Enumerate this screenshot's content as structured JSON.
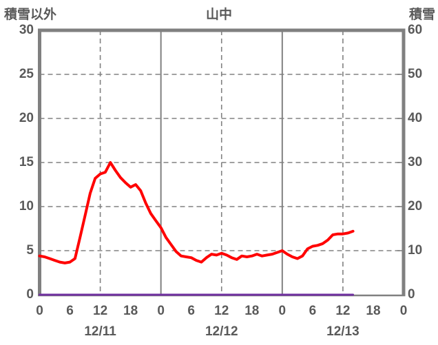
{
  "style": {
    "text_color": "#595959",
    "grid_color": "#808080",
    "background": "#ffffff"
  },
  "chart_data": {
    "type": "line",
    "title": "山中",
    "left_axis": {
      "label": "積雪以外",
      "min": 0,
      "max": 30,
      "ticks": [
        0,
        5,
        10,
        15,
        20,
        25,
        30
      ]
    },
    "right_axis": {
      "label": "積雪",
      "min": 0,
      "max": 60,
      "ticks": [
        0,
        10,
        20,
        30,
        40,
        50,
        60
      ]
    },
    "x_hours_span": 72,
    "x_ticks": [
      {
        "hour": 0,
        "label": "0"
      },
      {
        "hour": 6,
        "label": "6"
      },
      {
        "hour": 12,
        "label": "12"
      },
      {
        "hour": 18,
        "label": "18"
      },
      {
        "hour": 24,
        "label": "0"
      },
      {
        "hour": 30,
        "label": "6"
      },
      {
        "hour": 36,
        "label": "12"
      },
      {
        "hour": 42,
        "label": "18"
      },
      {
        "hour": 48,
        "label": "0"
      },
      {
        "hour": 54,
        "label": "6"
      },
      {
        "hour": 60,
        "label": "12"
      },
      {
        "hour": 66,
        "label": "18"
      },
      {
        "hour": 72,
        "label": "0"
      }
    ],
    "date_labels": [
      {
        "hour": 12,
        "label": "12/11"
      },
      {
        "hour": 36,
        "label": "12/12"
      },
      {
        "hour": 60,
        "label": "12/13"
      }
    ],
    "x_gridlines": [
      {
        "hour": 12,
        "style": "dashed"
      },
      {
        "hour": 24,
        "style": "solid"
      },
      {
        "hour": 36,
        "style": "dashed"
      },
      {
        "hour": 48,
        "style": "solid"
      },
      {
        "hour": 60,
        "style": "dashed"
      }
    ],
    "grid": true,
    "legend": "none",
    "series": [
      {
        "id": "other-than-snow-line",
        "name": "積雪以外",
        "axis": "left",
        "color": "#ff0000",
        "width": 4,
        "start_hour": 0,
        "values": [
          4.4,
          4.3,
          4.1,
          3.9,
          3.7,
          3.6,
          3.7,
          4.1,
          6.5,
          9.0,
          11.5,
          13.2,
          13.7,
          13.9,
          15.0,
          14.1,
          13.3,
          12.7,
          12.2,
          12.5,
          11.8,
          10.4,
          9.2,
          8.4,
          7.6,
          6.5,
          5.7,
          4.9,
          4.4,
          4.3,
          4.2,
          3.9,
          3.7,
          4.2,
          4.6,
          4.5,
          4.7,
          4.5,
          4.2,
          4.0,
          4.4,
          4.3,
          4.4,
          4.6,
          4.4,
          4.5,
          4.6,
          4.8,
          5.0,
          4.6,
          4.3,
          4.1,
          4.4,
          5.2,
          5.5,
          5.6,
          5.8,
          6.2,
          6.8,
          6.9,
          6.9,
          7.0,
          7.2
        ]
      },
      {
        "id": "snow-depth-line",
        "name": "積雪",
        "axis": "right",
        "color": "#7030a0",
        "width": 3,
        "start_hour": 0,
        "values": [
          0,
          0,
          0,
          0,
          0,
          0,
          0,
          0,
          0,
          0,
          0,
          0,
          0,
          0,
          0,
          0,
          0,
          0,
          0,
          0,
          0,
          0,
          0,
          0,
          0,
          0,
          0,
          0,
          0,
          0,
          0,
          0,
          0,
          0,
          0,
          0,
          0,
          0,
          0,
          0,
          0,
          0,
          0,
          0,
          0,
          0,
          0,
          0,
          0,
          0,
          0,
          0,
          0,
          0,
          0,
          0,
          0,
          0,
          0,
          0,
          0,
          0,
          0
        ]
      }
    ]
  }
}
